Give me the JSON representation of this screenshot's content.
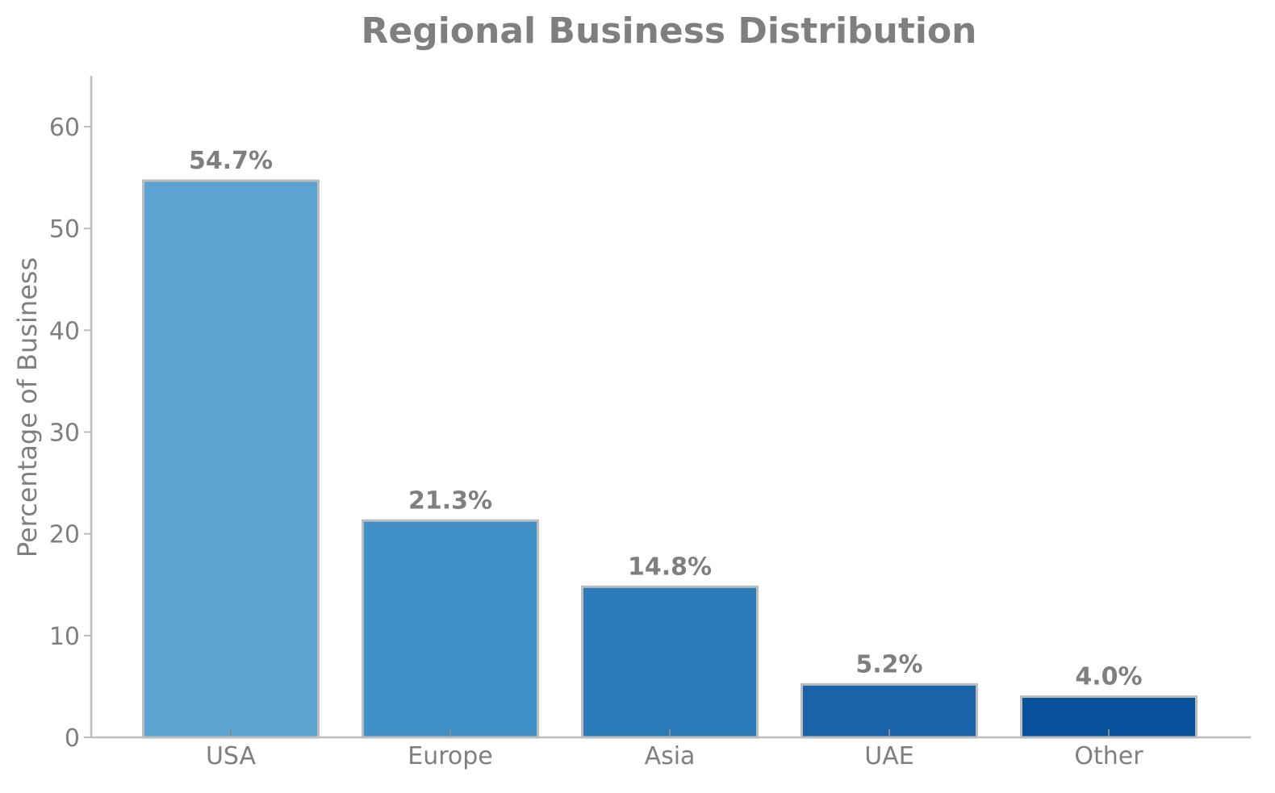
{
  "chart_data": {
    "type": "bar",
    "title": "Regional Business Distribution",
    "xlabel": "",
    "ylabel": "Percentage of Business",
    "categories": [
      "USA",
      "Europe",
      "Asia",
      "UAE",
      "Other"
    ],
    "values": [
      54.7,
      21.3,
      14.8,
      5.2,
      4.0
    ],
    "value_labels": [
      "54.7%",
      "21.3%",
      "14.8%",
      "5.2%",
      "4.0%"
    ],
    "yticks": [
      0,
      10,
      20,
      30,
      40,
      50,
      60
    ],
    "ylim": [
      0,
      65
    ],
    "grid": false,
    "legend": "none",
    "colors": [
      "#5ba3d0",
      "#3f8ec6",
      "#2b7bb9",
      "#1a63a9",
      "#08519c"
    ],
    "edge_color": "#bdbdbd",
    "text_color": "#7f7f7f",
    "axis_color": "#bdbdbd"
  }
}
